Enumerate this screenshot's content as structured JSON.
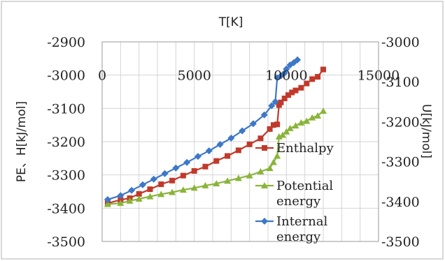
{
  "chart_data": {
    "type": "scatter",
    "title": "T[K]",
    "xlabel": "",
    "ylabel": "PE、H[kJ/mol]",
    "y2label": "U[kJ/mol]",
    "xlim": [
      0,
      15000
    ],
    "ylim": [
      -3500,
      -2900
    ],
    "y2lim": [
      -3500,
      -3000
    ],
    "x_ticks": [
      "0",
      "5000",
      "10000",
      "15000"
    ],
    "y_ticks": [
      "-2900",
      "-3000",
      "-3100",
      "-3200",
      "-3300",
      "-3400",
      "-3500"
    ],
    "y2_ticks": [
      "-3000",
      "-3100",
      "-3200",
      "-3300",
      "-3400",
      "-3500"
    ],
    "x_axis_position": "top",
    "grid": true,
    "legend_position": "right",
    "series": [
      {
        "name": "Enthalpy",
        "axis": "left",
        "color": "#c0392b",
        "marker": "square",
        "points": [
          [
            300,
            -3385
          ],
          [
            1000,
            -3375
          ],
          [
            1500,
            -3370
          ],
          [
            2000,
            -3357
          ],
          [
            2600,
            -3343
          ],
          [
            3200,
            -3328
          ],
          [
            3800,
            -3317
          ],
          [
            4400,
            -3302
          ],
          [
            5000,
            -3288
          ],
          [
            5600,
            -3275
          ],
          [
            6200,
            -3258
          ],
          [
            6800,
            -3243
          ],
          [
            7400,
            -3226
          ],
          [
            8000,
            -3208
          ],
          [
            8600,
            -3190
          ],
          [
            9100,
            -3162
          ],
          [
            9300,
            -3150
          ],
          [
            9500,
            -3148
          ],
          [
            9600,
            -3090
          ],
          [
            9700,
            -3082
          ],
          [
            9900,
            -3070
          ],
          [
            10100,
            -3060
          ],
          [
            10300,
            -3052
          ],
          [
            10500,
            -3046
          ],
          [
            10800,
            -3038
          ],
          [
            11100,
            -3025
          ],
          [
            11400,
            -3012
          ],
          [
            11700,
            -3005
          ],
          [
            12000,
            -2983
          ]
        ]
      },
      {
        "name": "Potential energy",
        "axis": "left",
        "color": "#8ab43a",
        "marker": "triangle",
        "points": [
          [
            300,
            -3388
          ],
          [
            1000,
            -3385
          ],
          [
            1500,
            -3378
          ],
          [
            2000,
            -3372
          ],
          [
            2600,
            -3365
          ],
          [
            3200,
            -3358
          ],
          [
            3800,
            -3352
          ],
          [
            4400,
            -3345
          ],
          [
            5000,
            -3339
          ],
          [
            5600,
            -3332
          ],
          [
            6200,
            -3326
          ],
          [
            6800,
            -3318
          ],
          [
            7400,
            -3310
          ],
          [
            8000,
            -3302
          ],
          [
            8600,
            -3290
          ],
          [
            9100,
            -3280
          ],
          [
            9300,
            -3262
          ],
          [
            9500,
            -3243
          ],
          [
            9600,
            -3185
          ],
          [
            9800,
            -3180
          ],
          [
            10000,
            -3170
          ],
          [
            10200,
            -3160
          ],
          [
            10500,
            -3152
          ],
          [
            10800,
            -3143
          ],
          [
            11100,
            -3138
          ],
          [
            11400,
            -3128
          ],
          [
            11700,
            -3122
          ],
          [
            12000,
            -3108
          ]
        ]
      },
      {
        "name": "Internal energy",
        "axis": "right",
        "color": "#3d78c8",
        "marker": "diamond",
        "points": [
          [
            300,
            -3395
          ],
          [
            1000,
            -3385
          ],
          [
            1600,
            -3372
          ],
          [
            2200,
            -3358
          ],
          [
            2800,
            -3344
          ],
          [
            3400,
            -3330
          ],
          [
            4000,
            -3316
          ],
          [
            4600,
            -3302
          ],
          [
            5200,
            -3287
          ],
          [
            5800,
            -3273
          ],
          [
            6400,
            -3257
          ],
          [
            7000,
            -3241
          ],
          [
            7600,
            -3223
          ],
          [
            8200,
            -3205
          ],
          [
            8800,
            -3183
          ],
          [
            9200,
            -3160
          ],
          [
            9400,
            -3150
          ],
          [
            9500,
            -3090
          ],
          [
            9700,
            -3085
          ],
          [
            9900,
            -3078
          ],
          [
            10000,
            -3068
          ],
          [
            10200,
            -3058
          ],
          [
            10400,
            -3052
          ],
          [
            10600,
            -3045
          ]
        ]
      }
    ]
  }
}
